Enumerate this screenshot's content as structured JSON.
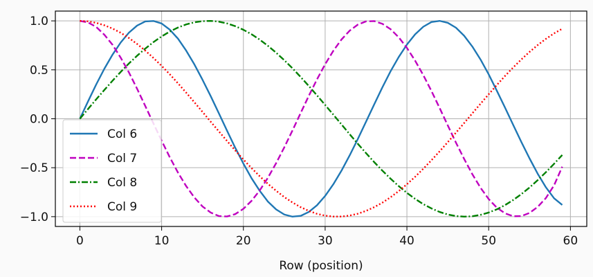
{
  "chart_data": {
    "type": "line",
    "title": "",
    "xlabel": "Row (position)",
    "ylabel": "",
    "xlim": [
      -3,
      62
    ],
    "ylim": [
      -1.1,
      1.1
    ],
    "xticks": [
      0,
      10,
      20,
      30,
      40,
      50,
      60
    ],
    "yticks": [
      -1.0,
      -0.5,
      0.0,
      0.5,
      1.0
    ],
    "xtick_labels": [
      "0",
      "10",
      "20",
      "30",
      "40",
      "50",
      "60"
    ],
    "ytick_labels": [
      "−1.0",
      "−0.5",
      "0.0",
      "0.5",
      "1.0"
    ],
    "grid": true,
    "legend_position": "lower-left",
    "x": [
      0,
      1,
      2,
      3,
      4,
      5,
      6,
      7,
      8,
      9,
      10,
      11,
      12,
      13,
      14,
      15,
      16,
      17,
      18,
      19,
      20,
      21,
      22,
      23,
      24,
      25,
      26,
      27,
      28,
      29,
      30,
      31,
      32,
      33,
      34,
      35,
      36,
      37,
      38,
      39,
      40,
      41,
      42,
      43,
      44,
      45,
      46,
      47,
      48,
      49,
      50,
      51,
      52,
      53,
      54,
      55,
      56,
      57,
      58,
      59
    ],
    "series": [
      {
        "name": "Col 6",
        "color": "#1f77b4",
        "dash": "solid",
        "values": [
          0.0,
          0.178,
          0.351,
          0.512,
          0.656,
          0.78,
          0.88,
          0.952,
          0.994,
          0.999,
          0.973,
          0.91,
          0.818,
          0.696,
          0.556,
          0.398,
          0.231,
          0.056,
          -0.122,
          -0.296,
          -0.458,
          -0.608,
          -0.736,
          -0.846,
          -0.926,
          -0.978,
          -1.0,
          -0.992,
          -0.952,
          -0.884,
          -0.788,
          -0.669,
          -0.53,
          -0.374,
          -0.206,
          -0.03,
          0.147,
          0.321,
          0.485,
          0.631,
          0.758,
          0.862,
          0.94,
          0.988,
          1.0,
          0.98,
          0.93,
          0.848,
          0.738,
          0.606,
          0.454,
          0.286,
          0.114,
          -0.063,
          -0.238,
          -0.405,
          -0.562,
          -0.7,
          -0.812,
          -0.88
        ]
      },
      {
        "name": "Col 7",
        "color": "#bf00bf",
        "dash": "dashed",
        "values": [
          1.0,
          0.984,
          0.938,
          0.858,
          0.755,
          0.623,
          0.473,
          0.306,
          0.13,
          -0.048,
          -0.224,
          -0.394,
          -0.55,
          -0.688,
          -0.804,
          -0.896,
          -0.958,
          -0.994,
          -0.998,
          -0.974,
          -0.92,
          -0.838,
          -0.732,
          -0.602,
          -0.454,
          -0.292,
          -0.12,
          0.058,
          0.234,
          0.402,
          0.557,
          0.694,
          0.81,
          0.9,
          0.962,
          0.995,
          0.998,
          0.97,
          0.915,
          0.832,
          0.724,
          0.594,
          0.446,
          0.284,
          0.11,
          -0.068,
          -0.244,
          -0.41,
          -0.566,
          -0.704,
          -0.82,
          -0.908,
          -0.966,
          -0.996,
          -0.994,
          -0.962,
          -0.9,
          -0.81,
          -0.68,
          -0.49
        ]
      },
      {
        "name": "Col 8",
        "color": "#008000",
        "dash": "dashdot",
        "values": [
          0.0,
          0.1,
          0.199,
          0.295,
          0.389,
          0.479,
          0.565,
          0.644,
          0.717,
          0.783,
          0.841,
          0.891,
          0.932,
          0.964,
          0.985,
          0.997,
          1.0,
          0.992,
          0.974,
          0.946,
          0.909,
          0.863,
          0.808,
          0.745,
          0.675,
          0.598,
          0.516,
          0.427,
          0.335,
          0.239,
          0.141,
          0.042,
          -0.058,
          -0.158,
          -0.256,
          -0.351,
          -0.443,
          -0.53,
          -0.612,
          -0.688,
          -0.757,
          -0.818,
          -0.872,
          -0.916,
          -0.952,
          -0.978,
          -0.994,
          -1.0,
          -0.996,
          -0.982,
          -0.958,
          -0.925,
          -0.882,
          -0.83,
          -0.77,
          -0.702,
          -0.627,
          -0.546,
          -0.46,
          -0.37
        ]
      },
      {
        "name": "Col 9",
        "color": "#ff0000",
        "dash": "dotted",
        "values": [
          1.0,
          0.995,
          0.98,
          0.955,
          0.921,
          0.878,
          0.825,
          0.764,
          0.696,
          0.621,
          0.54,
          0.454,
          0.362,
          0.267,
          0.169,
          0.07,
          -0.03,
          -0.129,
          -0.227,
          -0.323,
          -0.416,
          -0.504,
          -0.587,
          -0.665,
          -0.735,
          -0.8,
          -0.855,
          -0.903,
          -0.941,
          -0.971,
          -0.99,
          -0.999,
          -0.999,
          -0.989,
          -0.97,
          -0.941,
          -0.903,
          -0.857,
          -0.802,
          -0.739,
          -0.669,
          -0.593,
          -0.511,
          -0.424,
          -0.333,
          -0.239,
          -0.142,
          -0.044,
          0.055,
          0.153,
          0.25,
          0.345,
          0.437,
          0.524,
          0.606,
          0.683,
          0.753,
          0.816,
          0.872,
          0.92
        ]
      }
    ]
  }
}
